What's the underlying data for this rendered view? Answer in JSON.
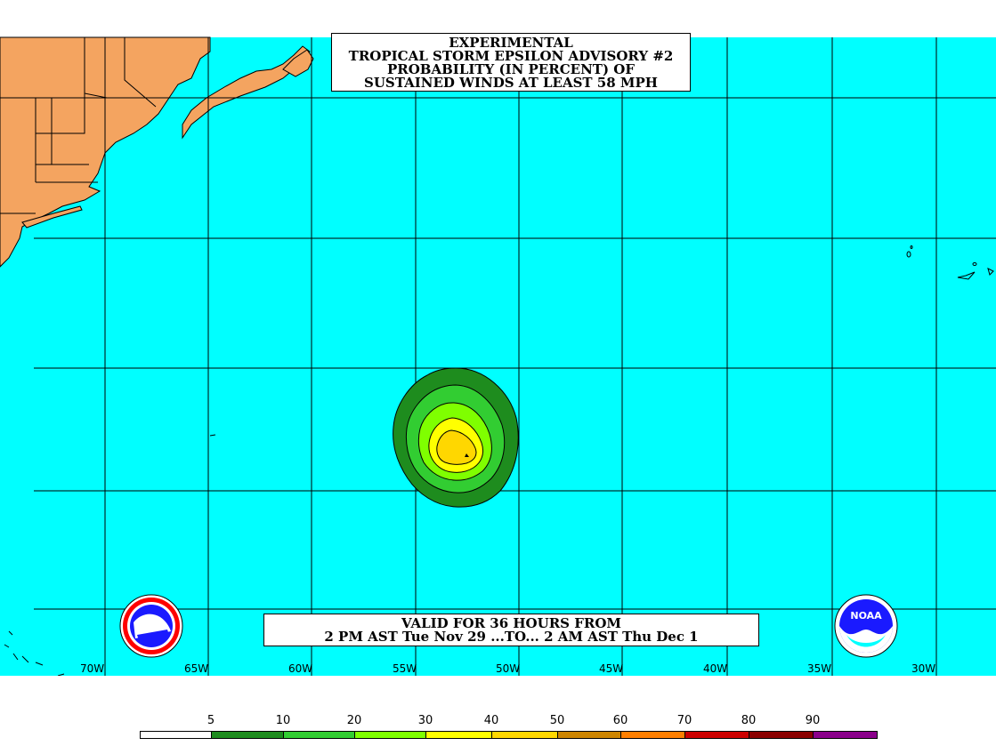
{
  "title": {
    "line1": "EXPERIMENTAL",
    "line2": "TROPICAL STORM EPSILON ADVISORY #2",
    "line3": "PROBABILITY (IN PERCENT) OF",
    "line4": "SUSTAINED WINDS AT LEAST 58 MPH"
  },
  "valid": {
    "line1": "VALID FOR 36 HOURS FROM",
    "line2": "2 PM AST Tue Nov 29 ...TO... 2 AM AST Thu Dec 1"
  },
  "longitude_labels": [
    "70W",
    "65W",
    "60W",
    "55W",
    "50W",
    "45W",
    "40W",
    "35W",
    "30W"
  ],
  "legend": {
    "labels": [
      "5",
      "10",
      "20",
      "30",
      "40",
      "50",
      "60",
      "70",
      "80",
      "90"
    ],
    "colors": [
      "#ffffff",
      "#1e8c1e",
      "#32cd32",
      "#7fff00",
      "#ffff00",
      "#ffd700",
      "#cd8500",
      "#ff7f00",
      "#cd0000",
      "#8b0000",
      "#8b008b"
    ]
  },
  "colors": {
    "ocean": "#00ffff",
    "land": "#f4a460",
    "contour_5": "#1e8c1e",
    "contour_10": "#32cd32",
    "contour_20": "#7fff00",
    "contour_30": "#ffff00",
    "contour_40": "#ffd700"
  },
  "logos": {
    "left": "nws-logo-icon",
    "right": "noaa-logo-icon",
    "right_text": "NOAA"
  }
}
